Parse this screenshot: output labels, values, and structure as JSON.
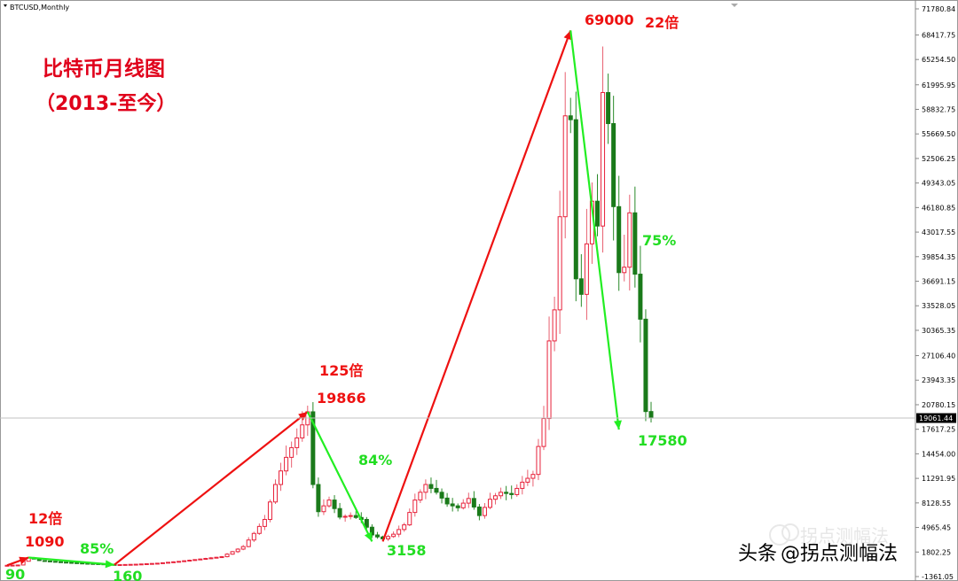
{
  "symbol": "BTCUSD,Monthly",
  "title": {
    "line1": "比特币月线图",
    "line2": "（2013-至今）"
  },
  "current_price": "19061.44",
  "watermark": {
    "platform": "头条",
    "account": "@拐点测幅法",
    "faded_account": "拐点测幅法"
  },
  "colors": {
    "bull": "#e8213a",
    "bear": "#1a7a1a",
    "arrow_up": "#ee1111",
    "arrow_down": "#22ee22",
    "title": "#e0001b"
  },
  "chart_data": {
    "type": "candlestick",
    "ylim": [
      -1361.05,
      71780.84
    ],
    "y_ticks": [
      "71780.84",
      "68417.75",
      "65254.50",
      "61995.95",
      "58832.75",
      "55669.50",
      "52506.25",
      "49343.05",
      "46180.85",
      "43017.55",
      "39854.35",
      "36691.15",
      "33528.05",
      "30365.35",
      "27106.40",
      "23943.35",
      "20780.15",
      "17617.25",
      "14454.00",
      "11291.95",
      "8128.55",
      "4965.45",
      "1802.25",
      "-1361.05"
    ],
    "annotations": [
      {
        "label": "90",
        "color": "green",
        "value": 90
      },
      {
        "label": "1090",
        "color": "red",
        "value": 1090
      },
      {
        "label": "12倍",
        "color": "red",
        "value": 1090
      },
      {
        "label": "160",
        "color": "green",
        "value": 160
      },
      {
        "label": "85%",
        "color": "green",
        "value": 600
      },
      {
        "label": "19866",
        "color": "red",
        "value": 19866
      },
      {
        "label": "125倍",
        "color": "red",
        "value": 19866
      },
      {
        "label": "84%",
        "color": "green",
        "value": 11500
      },
      {
        "label": "3158",
        "color": "green",
        "value": 3158
      },
      {
        "label": "69000",
        "color": "red",
        "value": 69000
      },
      {
        "label": "22倍",
        "color": "red",
        "value": 69000
      },
      {
        "label": "75%",
        "color": "green",
        "value": 42000
      },
      {
        "label": "17580",
        "color": "green",
        "value": 17580
      }
    ],
    "trend_lines": [
      {
        "from_index": 0,
        "from_value": 90,
        "to_index": 4,
        "to_value": 1090,
        "direction": "up"
      },
      {
        "from_index": 4,
        "from_value": 1090,
        "to_index": 20,
        "to_value": 160,
        "direction": "down"
      },
      {
        "from_index": 20,
        "from_value": 160,
        "to_index": 56,
        "to_value": 19866,
        "direction": "up"
      },
      {
        "from_index": 56,
        "from_value": 19866,
        "to_index": 68,
        "to_value": 3158,
        "direction": "down"
      },
      {
        "from_index": 70,
        "from_value": 3158,
        "to_index": 105,
        "to_value": 69000,
        "direction": "up"
      },
      {
        "from_index": 105,
        "from_value": 69000,
        "to_index": 114,
        "to_value": 17580,
        "direction": "down"
      }
    ]
  }
}
